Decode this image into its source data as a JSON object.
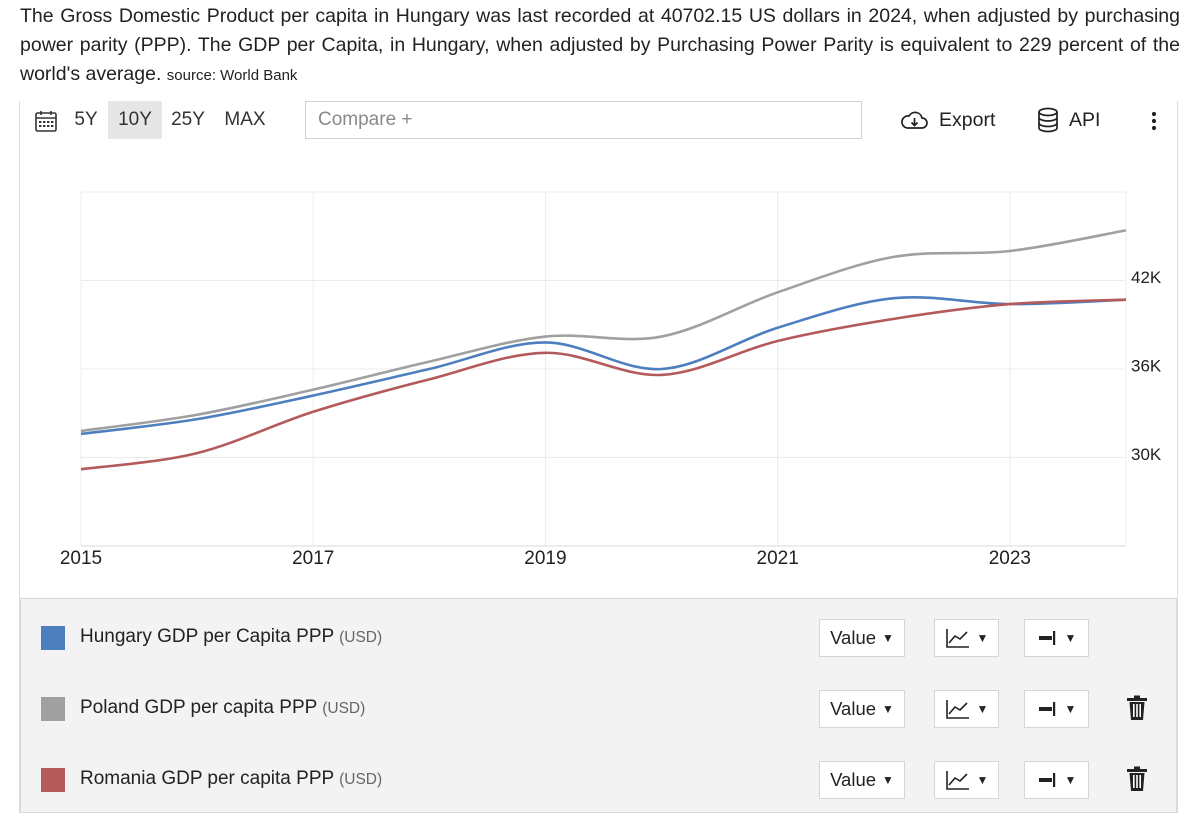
{
  "intro": {
    "text": "The Gross Domestic Product per capita in Hungary was last recorded at 40702.15 US dollars in 2024, when adjusted by purchasing power parity (PPP). The GDP per Capita, in Hungary, when adjusted by Purchasing Power Parity is equivalent to 229 percent of the world's average.",
    "source": "source: World Bank"
  },
  "toolbar": {
    "calendar_icon": "calendar-icon",
    "ranges": [
      "5Y",
      "10Y",
      "25Y",
      "MAX"
    ],
    "active_range": "10Y",
    "compare_placeholder": "Compare +",
    "export_label": "Export",
    "api_label": "API",
    "more_icon": "vertical-dots-icon"
  },
  "chart_data": {
    "type": "line",
    "title": "",
    "xlabel": "",
    "ylabel": "",
    "x": [
      2015,
      2016,
      2017,
      2018,
      2019,
      2020,
      2021,
      2022,
      2023,
      2024
    ],
    "x_ticks": [
      "2015",
      "2017",
      "2019",
      "2021",
      "2023"
    ],
    "y_ticks": [
      "30K",
      "36K",
      "42K"
    ],
    "y_tick_values": [
      30000,
      36000,
      42000
    ],
    "xlim": [
      2015,
      2024
    ],
    "ylim": [
      24000,
      48000
    ],
    "grid": true,
    "series": [
      {
        "name": "Hungary GDP per Capita PPP",
        "unit": "(USD)",
        "color": "#4d7fbf",
        "values": [
          31600,
          32600,
          34200,
          36000,
          37800,
          36000,
          38800,
          40800,
          40400,
          40700
        ]
      },
      {
        "name": "Poland GDP per capita PPP",
        "unit": "(USD)",
        "color": "#a0a0a0",
        "values": [
          31800,
          32900,
          34600,
          36500,
          38200,
          38200,
          41200,
          43600,
          44000,
          45400
        ]
      },
      {
        "name": "Romania GDP per capita PPP",
        "unit": "(USD)",
        "color": "#b55a5a",
        "values": [
          29200,
          30300,
          33100,
          35300,
          37100,
          35600,
          37900,
          39400,
          40400,
          40700
        ]
      }
    ]
  },
  "legend": {
    "value_label": "Value",
    "chart_type_icon": "line-chart-icon",
    "axis_icon": "axis-align-icon",
    "delete_icon": "trash-icon"
  }
}
